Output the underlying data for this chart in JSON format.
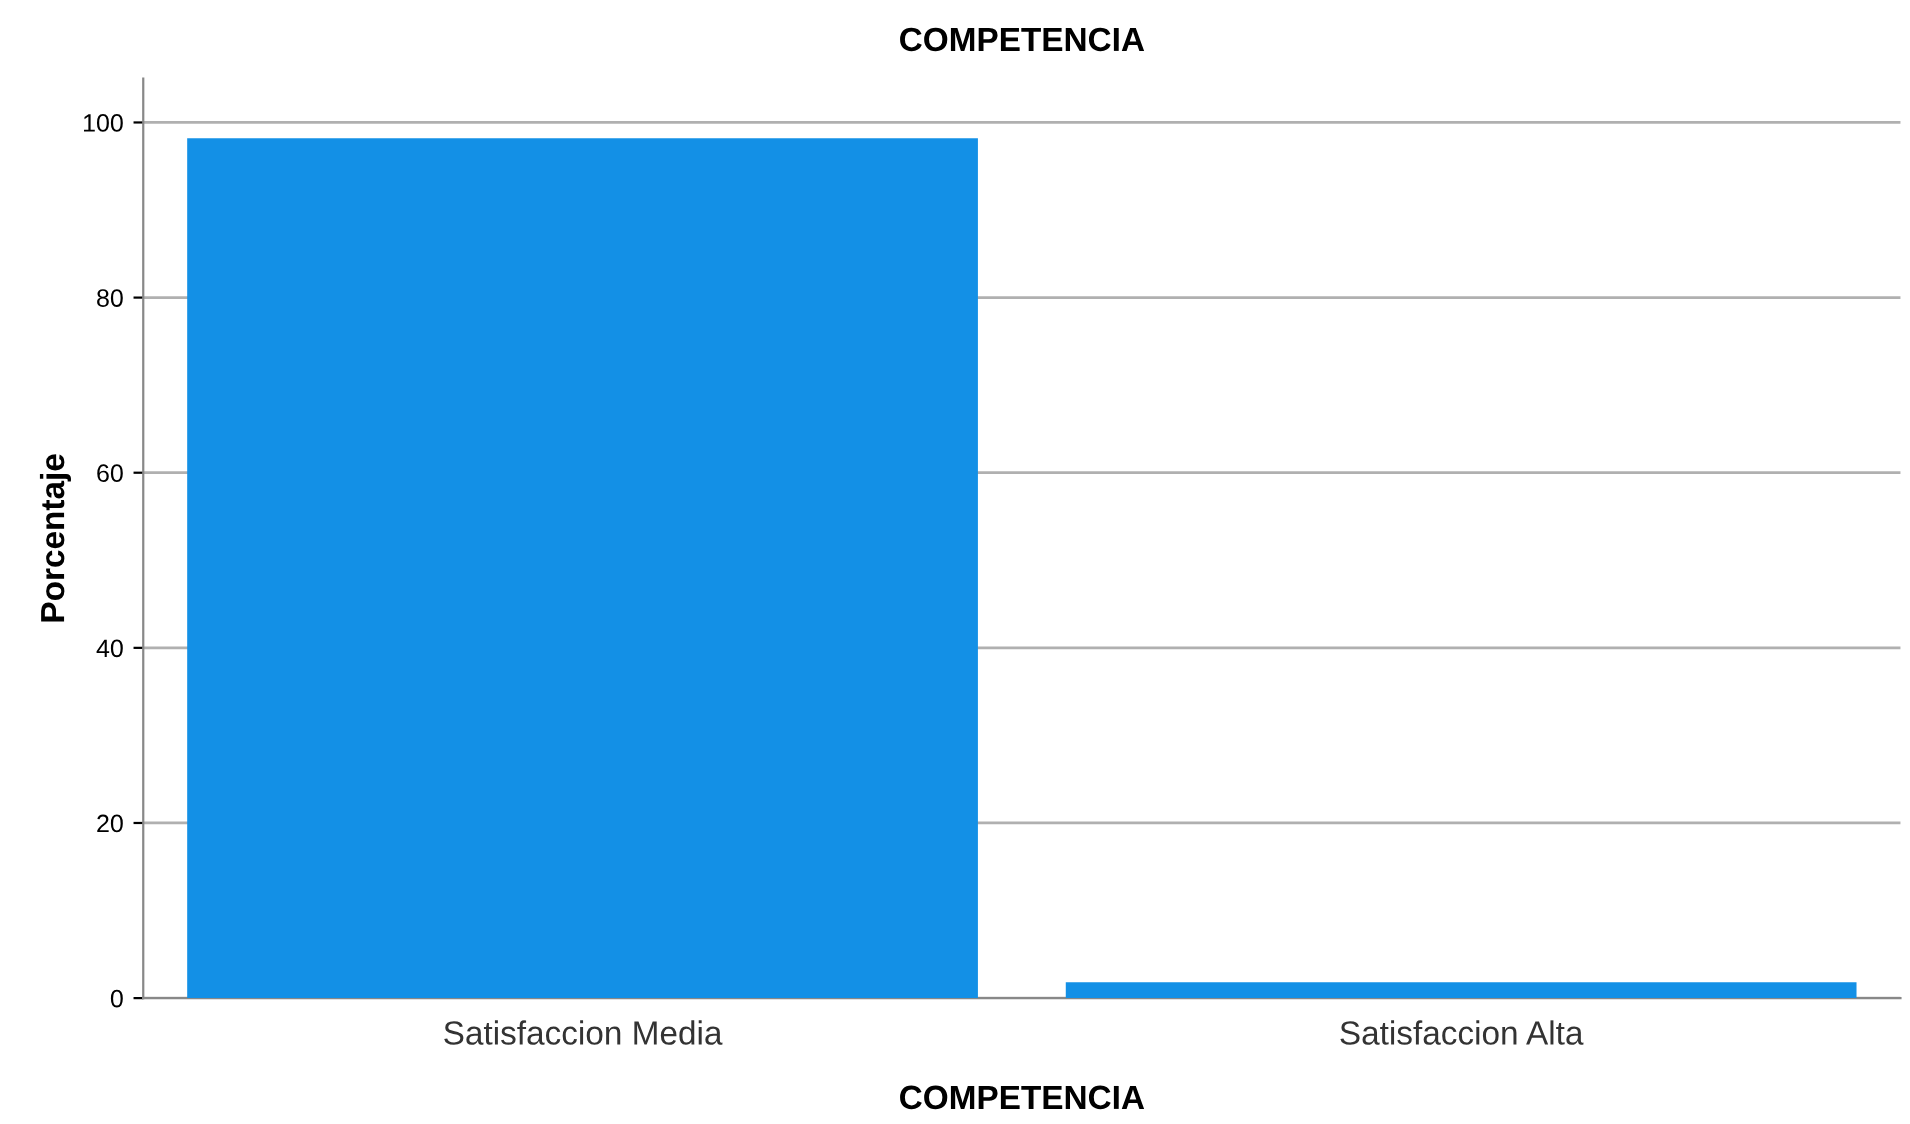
{
  "chart_data": {
    "type": "bar",
    "title": "COMPETENCIA",
    "xlabel": "COMPETENCIA",
    "ylabel": "Porcentaje",
    "categories": [
      "Satisfaccion Media",
      "Satisfaccion Alta"
    ],
    "values": [
      98.2,
      1.8
    ],
    "color": "#1390e6",
    "ylim": [
      0,
      105
    ],
    "yticks": [
      0,
      20,
      40,
      60,
      80,
      100
    ],
    "grid": "y"
  }
}
